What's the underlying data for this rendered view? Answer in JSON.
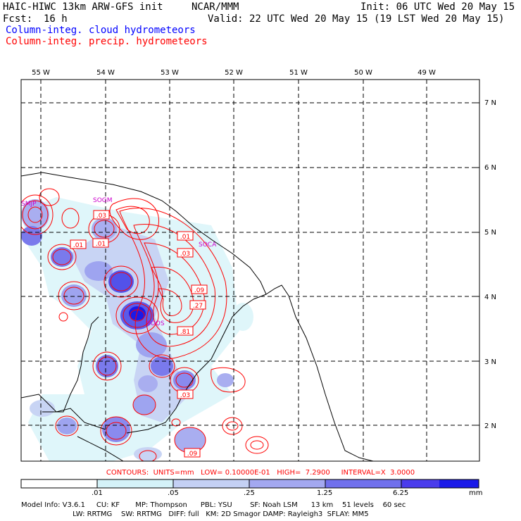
{
  "header": {
    "title": "HAIC-HIWC 13km ARW-GFS init",
    "org": "NCAR/MMM",
    "init": "Init: 06 UTC Wed 20 May 15",
    "fcst_label": "Fcst:",
    "fcst_value": "16 h",
    "valid": "Valid: 22 UTC Wed 20 May 15 (19 LST Wed 20 May 15)",
    "legend_cloud": "Column-integ. cloud hydrometeors",
    "legend_precip": "Column-integ. precip. hydrometeors"
  },
  "colors": {
    "cloud": "#0000ff",
    "precip": "#ff0000",
    "station": "#cc00cc"
  },
  "map": {
    "lon_labels": [
      "55 W",
      "54 W",
      "53 W",
      "52 W",
      "51 W",
      "50 W",
      "49 W"
    ],
    "lat_labels": [
      "7 N",
      "6 N",
      "5 N",
      "4 N",
      "3 N",
      "2 N"
    ],
    "stations": [
      "SMJP",
      "SOGM",
      "SOCA",
      "SOOS"
    ],
    "contour_labels": [
      ".03",
      ".01",
      ".01",
      ".01",
      ".03",
      ".09",
      ".27",
      ".81",
      ".03",
      ".09"
    ]
  },
  "colorbar": {
    "ticks": [
      ".01",
      ".05",
      ".25",
      "1.25",
      "6.25"
    ],
    "unit": "mm",
    "colors": [
      "#ffffff",
      "#d4f2f8",
      "#c4d0f4",
      "#a3a8f0",
      "#7070ec",
      "#4a3cec",
      "#1a1ae8"
    ]
  },
  "contour_info": "CONTOURS:  UNITS=mm   LOW= 0.10000E-01   HIGH=  7.2900     INTERVAL=X  3.0000",
  "model_info": {
    "line1": "Model Info: V3.6.1     CU: KF       MP: Thompson      PBL: YSU        SF: Noah LSM      13 km    51 levels    60 sec",
    "line2": "                       LW: RRTMG    SW: RRTMG   DIFF: full   KM: 2D Smagor DAMP: Rayleigh3  SFLAY: MM5"
  }
}
